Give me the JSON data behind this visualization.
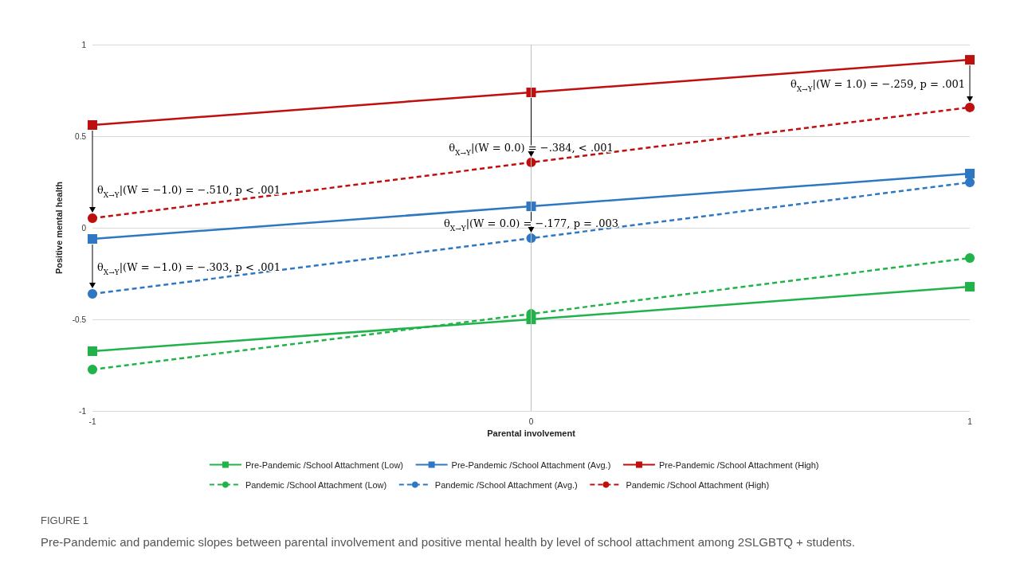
{
  "chart_data": {
    "type": "line",
    "xlabel": "Parental involvement",
    "ylabel": "Positive mental health",
    "x": [
      -1,
      0,
      1
    ],
    "series": [
      {
        "name": "Pre-Pandemic /School Attachment (Low)",
        "color": "#1fb34a",
        "marker": "square",
        "line_style": "solid",
        "values": [
          -0.674,
          -0.5,
          -0.322
        ]
      },
      {
        "name": "Pre-Pandemic /School Attachment (Avg.)",
        "color": "#2e78c3",
        "marker": "square",
        "line_style": "solid",
        "values": [
          -0.061,
          0.117,
          0.296
        ]
      },
      {
        "name": "Pre-Pandemic /School Attachment (High)",
        "color": "#c00f0f",
        "marker": "square",
        "line_style": "solid",
        "values": [
          0.561,
          0.739,
          0.917
        ]
      },
      {
        "name": "Pandemic /School Attachment (Low)",
        "color": "#1fb34a",
        "marker": "circle",
        "line_style": "dashed",
        "values": [
          -0.774,
          -0.47,
          -0.165
        ]
      },
      {
        "name": "Pandemic /School Attachment (Avg.)",
        "color": "#2e78c3",
        "marker": "circle",
        "line_style": "dashed",
        "values": [
          -0.361,
          -0.057,
          0.248
        ]
      },
      {
        "name": "Pandemic /School Attachment (High)",
        "color": "#c00f0f",
        "marker": "circle",
        "line_style": "dashed",
        "values": [
          0.052,
          0.357,
          0.657
        ]
      }
    ],
    "xlim": [
      -1,
      1
    ],
    "xticks": [
      -1,
      0,
      1
    ],
    "ylim": [
      -1,
      1
    ],
    "yticks": [
      -1,
      -0.5,
      0,
      0.5,
      1
    ],
    "grid": "y",
    "legend": "bottom",
    "ref_lines": [
      {
        "axis": "x",
        "value": 0,
        "color": "#bfbfbf"
      }
    ],
    "annotations": [
      {
        "text": "θ$_{X→Y}$|(W = −1.0) = −.510, p < .001",
        "x": -1,
        "y": 0.052
      },
      {
        "text": "θ$_{X→Y}$|(W = 0.0) = −.384, < .001",
        "x": 0,
        "y": 0.357
      },
      {
        "text": "θ$_{X→Y}$|(W = 1.0) = −.259, p = .001",
        "x": 1,
        "y": 0.657
      },
      {
        "text": "θ$_{X→Y}$|(W = −1.0) = −.303, p < .001",
        "x": -1,
        "y": -0.361
      },
      {
        "text": "θ$_{X→Y}$|(W = 0.0) = −.177, p = .003",
        "x": 0,
        "y": -0.057
      },
      "FIGURE 1",
      "Pre-Pandemic and pandemic slopes between parental involvement and positive mental health by level of school attachment among 2SLGBTQ + students."
    ]
  }
}
